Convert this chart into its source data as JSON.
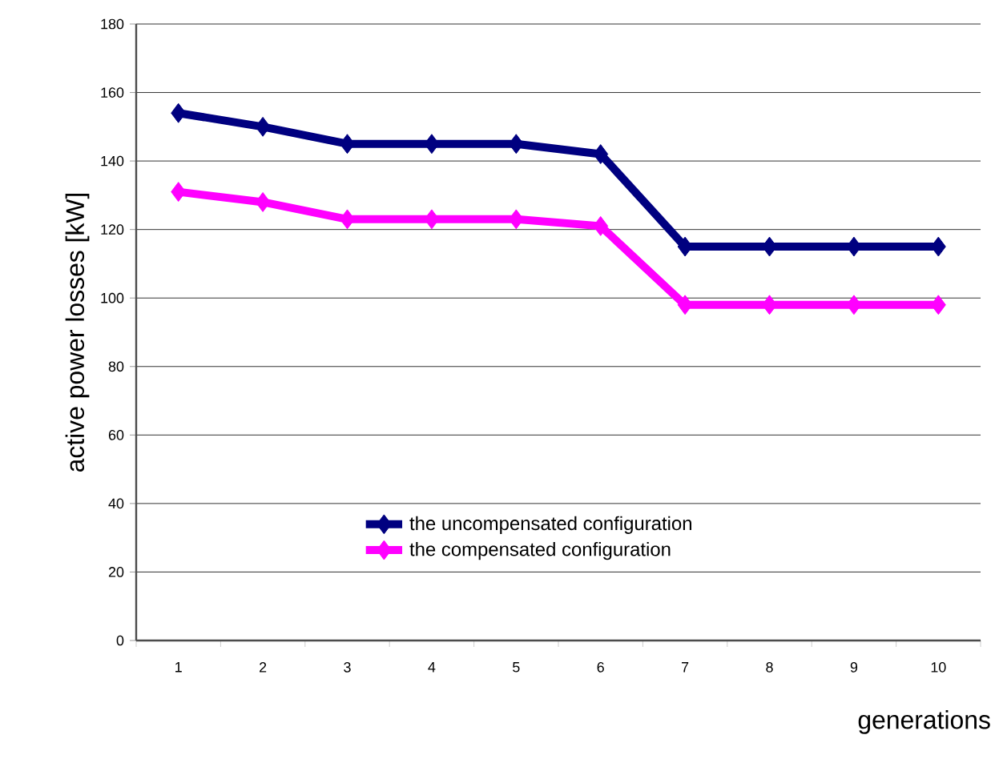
{
  "chart_data": {
    "type": "line",
    "xlabel": "generations",
    "ylabel": "active power losses [kW]",
    "categories": [
      "1",
      "2",
      "3",
      "4",
      "5",
      "6",
      "7",
      "8",
      "9",
      "10"
    ],
    "series": [
      {
        "name": "the uncompensated configuration",
        "color": "#000080",
        "values": [
          154,
          150,
          145,
          145,
          145,
          142,
          115,
          115,
          115,
          115
        ]
      },
      {
        "name": "the compensated configuration",
        "color": "#ff00ff",
        "values": [
          131,
          128,
          123,
          123,
          123,
          121,
          98,
          98,
          98,
          98
        ]
      }
    ],
    "ylim": [
      0,
      180
    ],
    "yticks": [
      0,
      20,
      40,
      60,
      80,
      100,
      120,
      140,
      160,
      180
    ],
    "grid": "y",
    "legend": "bottom",
    "marker": "diamond",
    "line_style": "solid"
  }
}
